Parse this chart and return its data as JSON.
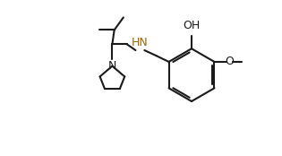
{
  "bg_color": "#ffffff",
  "bond_color": "#1a1a1a",
  "hn_color": "#9b6800",
  "n_color": "#1a1a1a",
  "line_width": 1.5,
  "fig_width": 3.15,
  "fig_height": 1.74,
  "dpi": 100,
  "font_size": 8.5,
  "font_family": "DejaVu Sans",
  "xlim": [
    -0.3,
    10.5
  ],
  "ylim": [
    -1.5,
    6.2
  ]
}
